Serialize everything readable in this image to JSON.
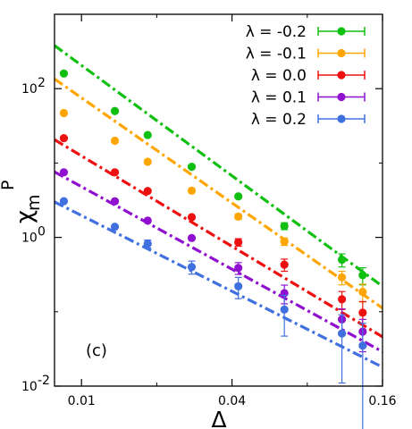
{
  "chart_data": {
    "type": "scatter",
    "panel_label": "(c)",
    "xlabel": "Δ",
    "ylabel_main": "χ",
    "ylabel_sub": "m",
    "ylabel_sup": "P",
    "xscale": "log",
    "yscale": "log",
    "xlim": [
      0.0078,
      0.16
    ],
    "ylim": [
      0.01,
      1000
    ],
    "xticks": [
      0.01,
      0.04,
      0.16
    ],
    "xtick_labels": [
      "0.01",
      "0.04",
      "0.16"
    ],
    "yticks": [
      0.01,
      1,
      100
    ],
    "ytick_labels": [
      "10",
      "10",
      "10"
    ],
    "ytick_exponents": [
      "-2",
      "0",
      "2"
    ],
    "legend_position": "top-right",
    "series": [
      {
        "name": "λ = -0.2",
        "color": "#10c010",
        "x": [
          0.0085,
          0.0136,
          0.0184,
          0.0276,
          0.0424,
          0.0648,
          0.1101,
          0.1333
        ],
        "y": [
          160,
          50,
          23.8,
          8.9,
          3.56,
          1.42,
          0.5,
          0.31
        ],
        "err": [
          0,
          0,
          0,
          0,
          0.2,
          0.15,
          0.1,
          0.08
        ],
        "fit": {
          "x1": 0.0078,
          "y1": 380,
          "x2": 0.16,
          "y2": 0.22
        }
      },
      {
        "name": "λ = -0.1",
        "color": "#ffa500",
        "x": [
          0.0085,
          0.0136,
          0.0184,
          0.0276,
          0.0424,
          0.0648,
          0.1101,
          0.1333
        ],
        "y": [
          47,
          19.9,
          10.4,
          4.25,
          1.9,
          0.88,
          0.29,
          0.185
        ],
        "err": [
          0,
          0,
          0,
          0,
          0.15,
          0.1,
          0.06,
          0.05
        ],
        "fit": {
          "x1": 0.0078,
          "y1": 135,
          "x2": 0.16,
          "y2": 0.112
        }
      },
      {
        "name": "λ = 0.0",
        "color": "#ee1010",
        "x": [
          0.0085,
          0.0136,
          0.0184,
          0.0276,
          0.0424,
          0.0648,
          0.1101,
          0.1333
        ],
        "y": [
          21.6,
          7.5,
          4.2,
          1.87,
          0.86,
          0.43,
          0.147,
          0.097
        ],
        "err": [
          0,
          0,
          0,
          0,
          0.1,
          0.08,
          0.04,
          0.04
        ],
        "fit": {
          "x1": 0.0078,
          "y1": 20.6,
          "x2": 0.16,
          "y2": 0.046
        }
      },
      {
        "name": "λ = 0.1",
        "color": "#9010d0",
        "x": [
          0.0085,
          0.0136,
          0.0184,
          0.0276,
          0.0424,
          0.0648,
          0.1101,
          0.1333
        ],
        "y": [
          7.5,
          3.06,
          1.68,
          0.98,
          0.388,
          0.178,
          0.079,
          0.054
        ],
        "err": [
          0,
          0,
          0,
          0,
          0.07,
          0.05,
          0.03,
          0.025
        ],
        "fit": {
          "x1": 0.0078,
          "y1": 7.6,
          "x2": 0.16,
          "y2": 0.029
        }
      },
      {
        "name": "λ = 0.2",
        "color": "#4070e0",
        "x": [
          0.0085,
          0.0136,
          0.0184,
          0.0276,
          0.0424,
          0.0648,
          0.1101,
          0.1333
        ],
        "y": [
          3.07,
          1.39,
          0.82,
          0.4,
          0.22,
          0.107,
          0.051,
          0.035
        ],
        "err": [
          0,
          0,
          0.1,
          0.08,
          0.07,
          0.06,
          0.04,
          0.035
        ],
        "fit": {
          "x1": 0.0078,
          "y1": 3.0,
          "x2": 0.16,
          "y2": 0.018
        }
      }
    ]
  }
}
